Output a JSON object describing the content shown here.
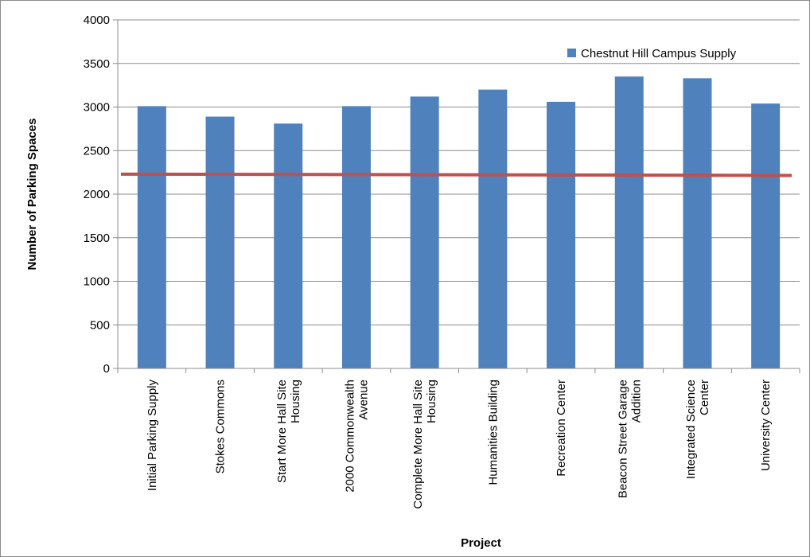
{
  "chart_data": {
    "type": "bar",
    "categories": [
      [
        "Initial Parking Supply"
      ],
      [
        "Stokes Commons"
      ],
      [
        "Start More Hall Site",
        "Housing"
      ],
      [
        "2000 Commonwealth",
        "Avenue"
      ],
      [
        "Complete More Hall Site",
        "Housing"
      ],
      [
        "Humanities Building"
      ],
      [
        "Recreation Center"
      ],
      [
        "Beacon Street Garage",
        "Addition"
      ],
      [
        "Integrated Science",
        "Center"
      ],
      [
        "University Center"
      ]
    ],
    "series": [
      {
        "name": "Chestnut Hill Campus Supply",
        "values": [
          3010,
          2890,
          2810,
          3010,
          3120,
          3200,
          3060,
          3350,
          3330,
          3040
        ],
        "color": "#4f81bd"
      }
    ],
    "reference_line": {
      "y_start": 2230,
      "y_end": 2215,
      "color": "#c0504d"
    },
    "xlabel": "Project",
    "ylabel": "Number of Parking Spaces",
    "ylim": [
      0,
      4000
    ],
    "yticks": [
      0,
      500,
      1000,
      1500,
      2000,
      2500,
      3000,
      3500,
      4000
    ],
    "grid": "horizontal-major",
    "legend_position": "top-right"
  }
}
